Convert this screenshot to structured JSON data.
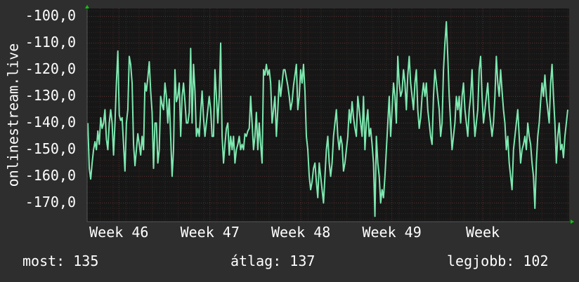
{
  "chart_data": {
    "type": "line",
    "ylabel": "onlinestream.live",
    "ylim": [
      -177,
      -97
    ],
    "yticks": [
      -100,
      -110,
      -120,
      -130,
      -140,
      -150,
      -160,
      -170
    ],
    "ytick_labels": [
      "-100,0",
      "-110,0",
      "-120,0",
      "-130,0",
      "-140,0",
      "-150,0",
      "-160,0",
      "-170,0"
    ],
    "xlim": [
      0,
      5.3
    ],
    "xticks": [
      0.35,
      1.35,
      2.35,
      3.35,
      4.35
    ],
    "xtick_labels": [
      "Week 46",
      "Week 47",
      "Week 48",
      "Week 49",
      "Week"
    ],
    "grid": true,
    "colors": {
      "background": "#2e2e2e",
      "plot_background": "#161616",
      "line": "#7de8b0",
      "grid": "#5a3030",
      "text": "#ffffff",
      "arrow": "#00cc00"
    },
    "series": [
      {
        "values": [
          -140,
          -157,
          -161,
          -155,
          -150,
          -147,
          -150,
          -143,
          -148,
          -138,
          -142,
          -140,
          -135,
          -146,
          -150,
          -140,
          -135,
          -140,
          -152,
          -140,
          -125,
          -113,
          -137,
          -139,
          -138,
          -148,
          -158,
          -140,
          -135,
          -115,
          -118,
          -125,
          -148,
          -156,
          -150,
          -144,
          -148,
          -152,
          -145,
          -150,
          -125,
          -128,
          -123,
          -117,
          -128,
          -136,
          -157,
          -140,
          -140,
          -155,
          -150,
          -130,
          -133,
          -135,
          -125,
          -130,
          -140,
          -131,
          -145,
          -160,
          -150,
          -120,
          -132,
          -130,
          -125,
          -145,
          -130,
          -125,
          -132,
          -140,
          -140,
          -136,
          -112,
          -140,
          -118,
          -128,
          -145,
          -142,
          -145,
          -136,
          -128,
          -138,
          -145,
          -140,
          -135,
          -130,
          -135,
          -145,
          -145,
          -120,
          -130,
          -140,
          -130,
          -110,
          -145,
          -155,
          -148,
          -142,
          -140,
          -152,
          -145,
          -150,
          -145,
          -155,
          -150,
          -148,
          -145,
          -150,
          -148,
          -150,
          -144,
          -145,
          -143,
          -142,
          -130,
          -140,
          -150,
          -145,
          -136,
          -150,
          -140,
          -148,
          -155,
          -120,
          -122,
          -118,
          -122,
          -120,
          -125,
          -140,
          -135,
          -130,
          -145,
          -135,
          -124,
          -130,
          -125,
          -120,
          -120,
          -123,
          -126,
          -130,
          -135,
          -132,
          -126,
          -122,
          -118,
          -135,
          -130,
          -120,
          -125,
          -118,
          -128,
          -145,
          -150,
          -160,
          -165,
          -162,
          -157,
          -155,
          -162,
          -168,
          -155,
          -160,
          -165,
          -170,
          -160,
          -150,
          -145,
          -155,
          -160,
          -155,
          -145,
          -140,
          -135,
          -145,
          -150,
          -145,
          -148,
          -158,
          -155,
          -150,
          -145,
          -135,
          -140,
          -132,
          -138,
          -142,
          -145,
          -130,
          -135,
          -140,
          -145,
          -130,
          -150,
          -140,
          -135,
          -145,
          -142,
          -148,
          -155,
          -175,
          -145,
          -155,
          -160,
          -170,
          -165,
          -168,
          -160,
          -150,
          -140,
          -130,
          -145,
          -135,
          -125,
          -130,
          -140,
          -115,
          -125,
          -130,
          -128,
          -120,
          -125,
          -135,
          -122,
          -115,
          -125,
          -130,
          -135,
          -125,
          -120,
          -135,
          -142,
          -138,
          -130,
          -125,
          -130,
          -125,
          -135,
          -140,
          -145,
          -148,
          -130,
          -120,
          -125,
          -130,
          -135,
          -145,
          -140,
          -120,
          -110,
          -102,
          -115,
          -130,
          -140,
          -150,
          -145,
          -140,
          -130,
          -135,
          -130,
          -140,
          -130,
          -125,
          -135,
          -140,
          -145,
          -135,
          -130,
          -120,
          -135,
          -145,
          -140,
          -135,
          -120,
          -115,
          -130,
          -140,
          -135,
          -130,
          -125,
          -135,
          -140,
          -145,
          -140,
          -130,
          -115,
          -125,
          -130,
          -120,
          -128,
          -135,
          -140,
          -150,
          -145,
          -155,
          -160,
          -165,
          -150,
          -145,
          -140,
          -135,
          -145,
          -155,
          -150,
          -148,
          -145,
          -150,
          -140,
          -145,
          -148,
          -155,
          -160,
          -172,
          -155,
          -145,
          -140,
          -132,
          -125,
          -130,
          -122,
          -130,
          -135,
          -140,
          -125,
          -118,
          -130,
          -140,
          -155,
          -145,
          -140,
          -150,
          -148,
          -153,
          -145,
          -140,
          -135
        ]
      }
    ]
  },
  "stats": {
    "current": "most: 135",
    "average": "átlag: 137",
    "best": "legjobb: 102"
  }
}
